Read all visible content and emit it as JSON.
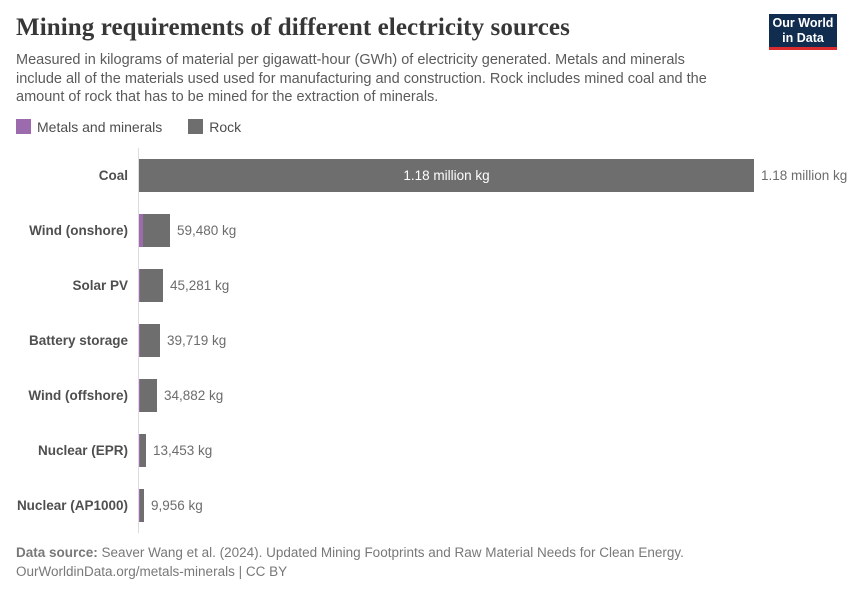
{
  "header": {
    "title": "Mining requirements of different electricity sources",
    "subtitle": "Measured in kilograms of material per gigawatt-hour (GWh) of electricity generated. Metals and minerals include all of the materials used used for manufacturing and construction. Rock includes mined coal and the amount of rock that has to be mined for the extraction of minerals.",
    "logo": {
      "line1": "Our World",
      "line2": "in Data",
      "bg_color": "#102d50",
      "accent_color": "#dc2b2e"
    }
  },
  "legend": {
    "items": [
      {
        "label": "Metals and minerals",
        "color": "#9b6bae"
      },
      {
        "label": "Rock",
        "color": "#6e6e6e"
      }
    ]
  },
  "chart_data": {
    "type": "bar",
    "orientation": "horizontal",
    "title": "Mining requirements of different electricity sources",
    "unit": "kg of material per GWh of electricity generated",
    "categories": [
      "Coal",
      "Wind (onshore)",
      "Solar PV",
      "Battery storage",
      "Wind (offshore)",
      "Nuclear (EPR)",
      "Nuclear (AP1000)"
    ],
    "totals": [
      1180000,
      59480,
      45281,
      39719,
      34882,
      13453,
      9956
    ],
    "total_labels": [
      "1.18 million kg",
      "59,480 kg",
      "45,281 kg",
      "39,719 kg",
      "34,882 kg",
      "13,453 kg",
      "9,956 kg"
    ],
    "series_names": [
      "Metals and minerals",
      "Rock"
    ],
    "metals_fraction_visual_estimate": [
      0,
      0.14,
      0.06,
      0.03,
      0.08,
      0.07,
      0.09
    ],
    "inside_label": [
      true,
      false,
      false,
      false,
      false,
      false,
      false
    ],
    "xmax": 1180000,
    "grid": false,
    "legend_position": "top-left"
  },
  "footer": {
    "source_label": "Data source:",
    "source_text": "Seaver Wang et al. (2024). Updated Mining Footprints and Raw Material Needs for Clean Energy.",
    "note": "OurWorldinData.org/metals-minerals | CC BY"
  }
}
